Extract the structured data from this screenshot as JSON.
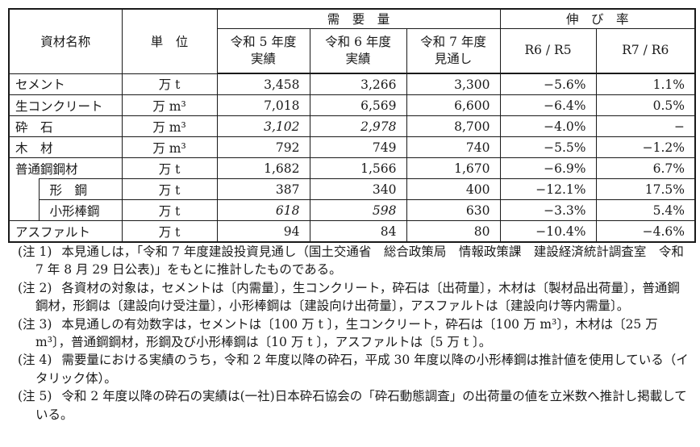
{
  "table": {
    "header": {
      "material": "資材名称",
      "unit": "単　位",
      "demand_group": "需　要　量",
      "growth_group": "伸　び　率",
      "col_y5": "令和 5 年度\n実績",
      "col_y6": "令和 6 年度\n実績",
      "col_y7": "令和 7 年度\n見通し",
      "col_r6r5": "R6 / R5",
      "col_r7r6": "R7 / R6"
    },
    "rows": [
      {
        "name": "セメント",
        "unit": "万 t",
        "values": [
          "3,458",
          "3,266",
          "3,300"
        ],
        "growth": [
          "−5.6%",
          "1.1%"
        ]
      },
      {
        "name": "生コンクリート",
        "unit": "万 m³",
        "values": [
          "7,018",
          "6,569",
          "6,600"
        ],
        "growth": [
          "−6.4%",
          "0.5%"
        ]
      },
      {
        "name": "砕　石",
        "unit": "万 m³",
        "values": [
          "3,102",
          "2,978",
          "8,700"
        ],
        "italic": [
          true,
          true,
          false
        ],
        "growth": [
          "−4.0%",
          "−"
        ]
      },
      {
        "name": "木　材",
        "unit": "万 m³",
        "values": [
          "792",
          "749",
          "740"
        ],
        "growth": [
          "−5.5%",
          "−1.2%"
        ]
      },
      {
        "name": "普通鋼鋼材",
        "unit": "万 t",
        "values": [
          "1,682",
          "1,566",
          "1,670"
        ],
        "growth": [
          "−6.9%",
          "6.7%"
        ],
        "group": true
      },
      {
        "name": "形　鋼",
        "unit": "万 t",
        "values": [
          "387",
          "340",
          "400"
        ],
        "growth": [
          "−12.1%",
          "17.5%"
        ],
        "sub": true,
        "strip": true
      },
      {
        "name": "小形棒鋼",
        "unit": "万 t",
        "values": [
          "618",
          "598",
          "630"
        ],
        "italic": [
          true,
          true,
          false
        ],
        "growth": [
          "−3.3%",
          "5.4%"
        ],
        "sub": true
      },
      {
        "name": "アスファルト",
        "unit": "万 t",
        "values": [
          "94",
          "84",
          "80"
        ],
        "growth": [
          "−10.4%",
          "−4.6%"
        ]
      }
    ]
  },
  "notes": [
    {
      "label": "(注 1)",
      "text": "本見通しは，「令和 7 年度建設投資見通し（国土交通省　総合政策局　情報政策課　建設経済統計調査室　令和 7 年 8 月 29 日公表)」をもとに推計したものである。"
    },
    {
      "label": "(注 2)",
      "text": "各資材の対象は，セメントは〔内需量〕，生コンクリート，砕石は〔出荷量〕，木材は〔製材品出荷量〕，普通鋼鋼材，形鋼は〔建設向け受注量〕，小形棒鋼は〔建設向け出荷量〕，アスファルトは〔建設向け等内需量〕。"
    },
    {
      "label": "(注 3)",
      "text": "本見通しの有効数字は，セメントは〔100 万 t 〕，生コンクリート，砕石は〔100 万 m³〕，木材は〔25 万 m³〕，普通鋼鋼材，形鋼及び小形棒鋼は〔10 万 t 〕，アスファルトは〔5 万 t 〕。"
    },
    {
      "label": "(注 4)",
      "text": "需要量における実績のうち，令和 2 年度以降の砕石，平成 30 年度以降の小形棒鋼は推計値を使用している（イタリック体）。"
    },
    {
      "label": "(注 5)",
      "text": "令和 2 年度以降の砕石の実績は(一社)日本砕石協会の「砕石動態調査」の出荷量の値を立米数へ推計し掲載している。"
    }
  ],
  "colors": {
    "text": "#1a1a1a",
    "border": "#1a1a1a",
    "background": "#ffffff"
  }
}
